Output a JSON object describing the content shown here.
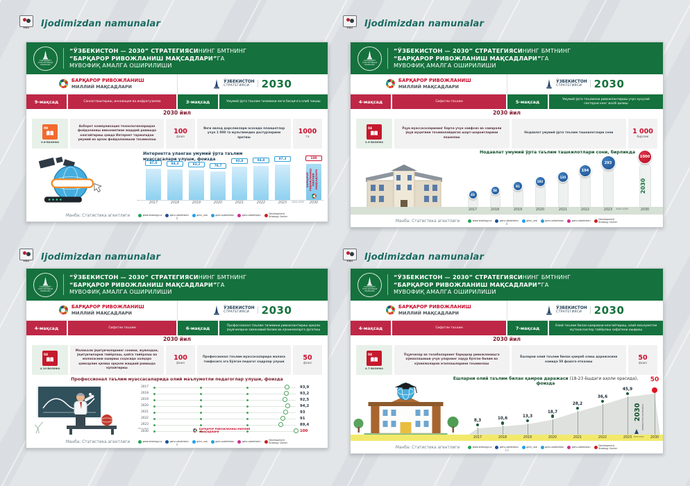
{
  "header": {
    "label": "Ijodimizdan namunalar",
    "logo_caption": "YIGIT"
  },
  "common": {
    "title1_bold": "“ЎЗБЕКИСТОН — 2030” СТРАТЕГИЯСИ",
    "title1_rest": "НИНГ БМТНИНГ",
    "title2_bold": "“БАРҚАРОР РИВОЖЛАНИШ МАҚСАДЛАРИ”",
    "title2_rest": "ГА",
    "title3": "МУВОФИҚ АМАЛГА ОШИРИЛИШИ",
    "logo_caption": "ТАРАҚҚИЁТ СТРАТЕГИЯСИ МАРКАЗИ",
    "sdg1": "БАРҚАРОР РИВОЖЛАНИШ",
    "sdg2": "МИЛЛИЙ МАҚСАДЛАРИ",
    "strat1": "ЎЗБЕКИСТОН",
    "strat2": "СТРАТЕГИЯСИ",
    "strat_year": "2030",
    "year_heading": "2030 йил",
    "source": "Манба: Статистика агентлиги",
    "socials": [
      {
        "name": "whatsapp",
        "label": "www.strategy.uz",
        "color": "#23a455"
      },
      {
        "name": "facebook",
        "label": "gdrv.uzbekistan",
        "color": "#1b4f9c"
      },
      {
        "name": "twitter",
        "label": "gdrv_uzb",
        "color": "#1da1f2"
      },
      {
        "name": "telegram",
        "label": "gdrv.uzbekistan",
        "color": "#2aa0da"
      },
      {
        "name": "instagram",
        "label": "gdrv.uzbekistan",
        "color": "#cf2e92"
      },
      {
        "name": "youtube",
        "label": "Development Strategy Center",
        "color": "#cf1d1d"
      }
    ],
    "colors": {
      "brand_green": "#15713d",
      "accent_red": "#c8102e",
      "band_red": "#bf2746",
      "chart_blue": "#2d9fd8"
    }
  },
  "slides": [
    {
      "goal_left_badge": "9-мақсад",
      "goal_left_text": "Саноатлаштириш, инновация ва инфратузилма",
      "goal_right_badge": "3-мақсад",
      "goal_right_text": "Умумий ўрта таълим тизимини янги босқичга олиб чиқиш",
      "task_number": "09",
      "task_code": "9.8-ВАЗИФА",
      "task_color": "#f26a2e",
      "text1": "Ахборот коммуникация технологияларидан фойдаланиш имкониятини жиддий равишда кенгайтириш ҳамда Интернет тармоғидан умумий ва арзон фойдаланишни таъминлаш",
      "value1": "100",
      "unit1": "фоиз",
      "text2": "Янги авлод дарсликлари асосида планшетлар учун 1 000 та мультимедиа дастурларини яратиш",
      "value2": "1000",
      "unit2": "та",
      "url_label": "http://www.",
      "page": "6"
    },
    {
      "goal_left_badge": "4-мақсад",
      "goal_left_text": "Сифатли таълим",
      "goal_right_badge": "5-мақсад",
      "goal_right_text": "Умумий ўрта таълимни ривожлантириш учун хусусий секторни кенг жалб қилиш",
      "task_number": "04",
      "task_code": "4.5-ВАЗИФА",
      "task_color": "#c5192d",
      "text1": "Ўқув муассасаларининг барча учун хавфсиз ва самарали ўқув муҳитини таъминлайдиган шарт-шароитларини яхшилаш",
      "value1": "",
      "unit1": "",
      "text2": "Нодавлат умумий ўрта таълим ташкилотлари сони",
      "value2": "1 000",
      "unit2": "бирлик",
      "page": "8"
    },
    {
      "goal_left_badge": "4-мақсад",
      "goal_left_text": "Сифатли таълим",
      "goal_right_badge": "6-мақсад",
      "goal_right_text": "Профессионал таълим тизимини ривожлантириш орқали ўқувчиларни замонавий билим ва кўникмаларга ўргатиш",
      "task_number": "04",
      "task_code": "4.10-ВАЗИФА",
      "task_color": "#c5192d",
      "text1": "Малакали ўқитувчиларнинг сонини, жумладан, ўқитувчиларни тайёрлаш, қайта тайёрлаш ва малакасини ошириш соҳасида халқаро ҳамкорлик қилиш орқали жиддий равишда кўпайтириш",
      "value1": "100",
      "unit1": "фоиз",
      "text2": "Профессионал таълим муассасаларида малака тоифасига эга бўлган педагог кадрлар улуши",
      "value2": "50",
      "unit2": "фоиз",
      "page": "9"
    },
    {
      "goal_left_badge": "4-мақсад",
      "goal_left_text": "Сифатли таълим",
      "goal_right_badge": "7-мақсад",
      "goal_right_text": "Олий таълим билан қамровни кенгайтириш, олий маълумотли мутахассислар тайёрлаш сифатини ошириш",
      "task_number": "04",
      "task_code": "4.7-ВАЗИФА",
      "task_color": "#c5192d",
      "text1": "Ўқувчилар ва талабаларнинг барқарор ривожланишга кўмаклашиши учун уларнинг зарур бўлган билим ва кўникмаларни эгаллашларини таъминлаш",
      "value1": "",
      "unit1": "",
      "text2": "Ёшларни олий таълим билан қамраб олиш даражасини камида 50 фоизга етказиш",
      "value2": "50",
      "unit2": "фоиз",
      "page": "10"
    }
  ],
  "chart_data": [
    {
      "type": "bar",
      "title": "Интернетга уланган умумий ўрта таълим муассасалари улуши, фоизда",
      "categories": [
        "2017",
        "2018",
        "2019",
        "2020",
        "2021",
        "2022",
        "2023",
        "2024-2029",
        "2030"
      ],
      "values": [
        87.0,
        84.3,
        83.2,
        78.7,
        92.8,
        94.8,
        97.3,
        null,
        100
      ],
      "labels": [
        "87,0",
        "84,3",
        "83,2",
        "78,7",
        "92,8",
        "94,8",
        "97,3",
        "",
        "100"
      ],
      "ylim": [
        0,
        100
      ],
      "bar_color": "#8ed1f0",
      "highlight": "#c8102e",
      "highlight_text": "БАРҚАРОР РИВОЖЛАНИШ МИЛЛИЙ МАҚСАДЛАРИ"
    },
    {
      "type": "lollipop",
      "title": "Нодавлат умумий ўрта таълим ташкилотлари сони, бирликда",
      "categories": [
        "2017",
        "2018",
        "2019",
        "2020",
        "2021",
        "2022",
        "2023",
        "2024-2029",
        "2030"
      ],
      "values": [
        43,
        58,
        91,
        102,
        135,
        194,
        293,
        null,
        1000
      ],
      "ylim": [
        0,
        1000
      ],
      "circle_color": "#1d4f8e",
      "highlight": "#c8102e",
      "tower_label": "2030"
    },
    {
      "type": "dot-rows",
      "title": "Профессионал таълим муассасаларида олий маълумотли педагоглар улуши, фоизда",
      "categories": [
        "2017",
        "2018",
        "2019",
        "2020",
        "2021",
        "2022",
        "2023",
        "2030"
      ],
      "gap_label": "2024-2029",
      "values": [
        93.9,
        93.2,
        92.5,
        94.2,
        93,
        91,
        89.4,
        100
      ],
      "labels": [
        "93,9",
        "93,2",
        "92,5",
        "94,2",
        "93",
        "91",
        "89,4",
        "100"
      ],
      "xlim": [
        0,
        100
      ],
      "accent": "#4aa35f",
      "highlight": "#c8102e",
      "annotation": "БАРҚАРОР РИВОЖЛАНИШ МИЛЛИЙ МАҚСАДЛАРИ"
    },
    {
      "type": "scatter",
      "title_bold": "Ёшларни олий таълим билан қамров даражаси",
      "title_normal": " (18-23 ёшдаги аҳоли орасида), ",
      "title_bold2": "фоизда",
      "categories": [
        "2017",
        "2018",
        "2019",
        "2020",
        "2021",
        "2022",
        "2023",
        "2030"
      ],
      "gap_label": "2024-2029",
      "values": [
        8.3,
        10.6,
        13.3,
        18.7,
        28.2,
        36.6,
        45.9,
        50
      ],
      "labels": [
        "8,3",
        "10,6",
        "13,3",
        "18,7",
        "28,2",
        "36,6",
        "45,9",
        "50"
      ],
      "ylim": [
        0,
        50
      ],
      "dot_color": "#1d5c3c",
      "highlight": "#e01424",
      "band_color": "#f2e96b",
      "tower_label": "2030",
      "tower_sub": "ЎЗБЕКИСТОН СТРАТЕГИЯСИ"
    }
  ]
}
